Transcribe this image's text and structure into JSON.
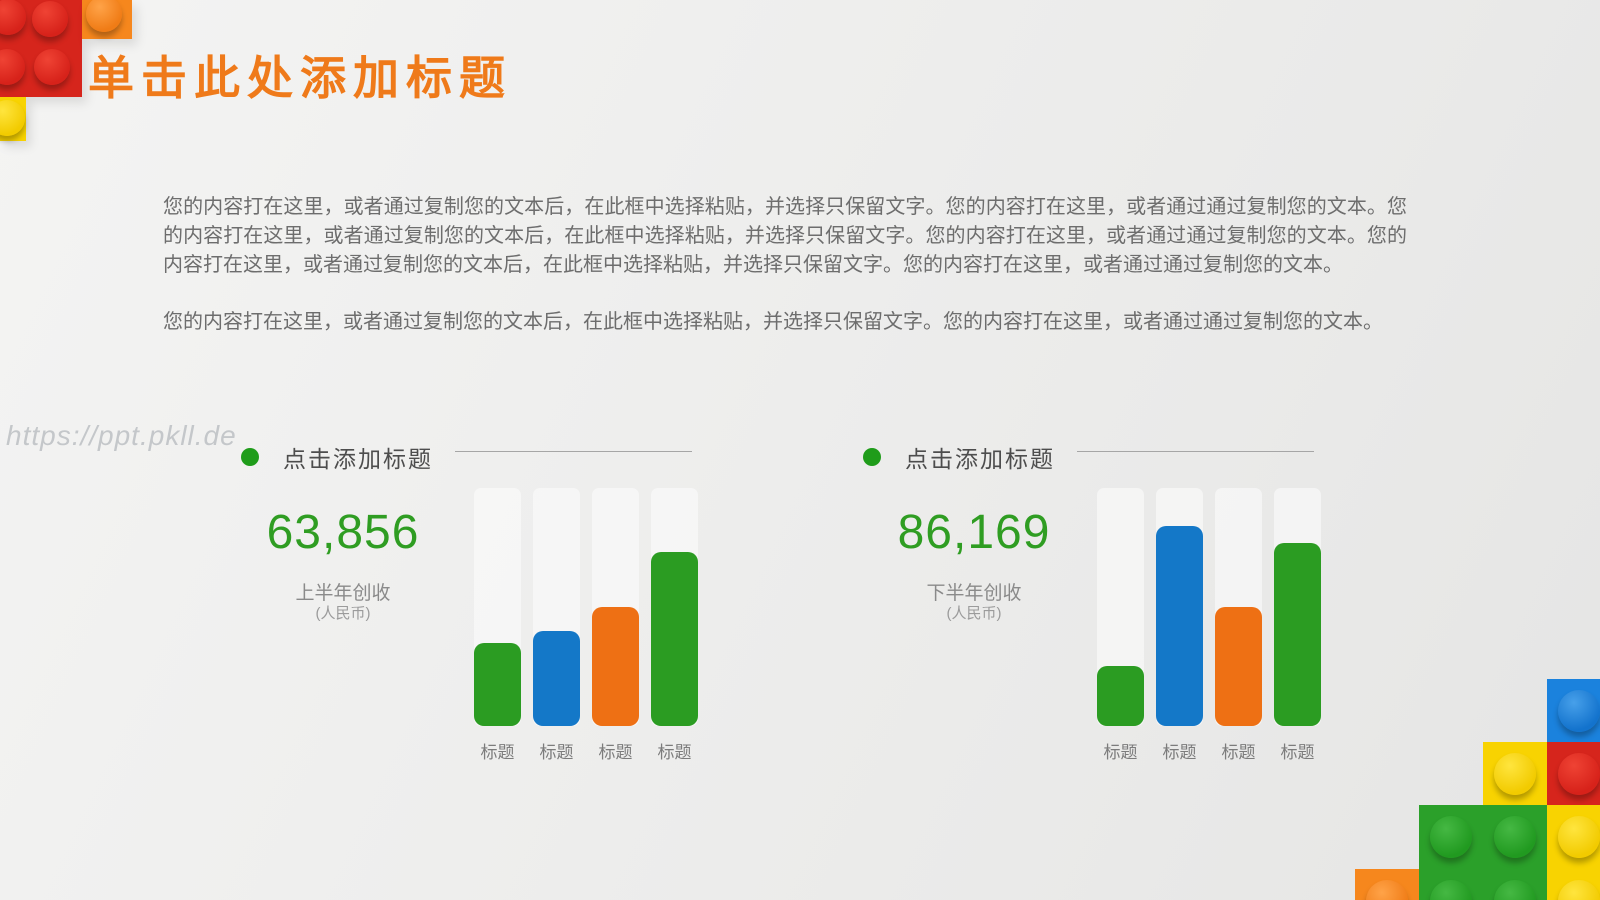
{
  "page": {
    "title": "单击此处添加标题",
    "watermark": "https://ppt.pkll.de"
  },
  "body_text": {
    "paragraph1": "您的内容打在这里，或者通过复制您的文本后，在此框中选择粘贴，并选择只保留文字。您的内容打在这里，或者通过通过复制您的文本。您的内容打在这里，或者通过复制您的文本后，在此框中选择粘贴，并选择只保留文字。您的内容打在这里，或者通过通过复制您的文本。您的内容打在这里，或者通过复制您的文本后，在此框中选择粘贴，并选择只保留文字。您的内容打在这里，或者通过通过复制您的文本。",
    "paragraph2": "您的内容打在这里，或者通过复制您的文本后，在此框中选择粘贴，并选择只保留文字。您的内容打在这里，或者通过通过复制您的文本。"
  },
  "colors": {
    "title_orange": "#ef7a1a",
    "stat_green": "#2f9d22",
    "bullet_green": "#1f9c1a",
    "bar_green": "#2b9c22",
    "bar_blue": "#1478c8",
    "bar_orange": "#ee7014",
    "lego_red": "#d6251c",
    "lego_orange": "#f6871d",
    "lego_yellow": "#f8d301",
    "lego_blue": "#1b82dd",
    "lego_green": "#2ba02a"
  },
  "sections": [
    {
      "bullet_icon": "green-dot",
      "header": "点击添加标题",
      "value": "63,856",
      "label": "上半年创收",
      "sublabel": "(人民币)"
    },
    {
      "bullet_icon": "green-dot",
      "header": "点击添加标题",
      "value": "86,169",
      "label": "下半年创收",
      "sublabel": "(人民币)"
    }
  ],
  "chart_data": [
    {
      "type": "bar",
      "title": "点击添加标题",
      "subtitle_value": "63,856",
      "categories": [
        "标题",
        "标题",
        "标题",
        "标题"
      ],
      "values": [
        35,
        40,
        50,
        73
      ],
      "unit": "percent of track height",
      "ylim": [
        0,
        100
      ],
      "grid": false,
      "legend": "none",
      "bar_colors": [
        "#2b9c22",
        "#1478c8",
        "#ee7014",
        "#2b9c22"
      ]
    },
    {
      "type": "bar",
      "title": "点击添加标题",
      "subtitle_value": "86,169",
      "categories": [
        "标题",
        "标题",
        "标题",
        "标题"
      ],
      "values": [
        25,
        84,
        50,
        77
      ],
      "unit": "percent of track height",
      "ylim": [
        0,
        100
      ],
      "grid": false,
      "legend": "none",
      "bar_colors": [
        "#2b9c22",
        "#1478c8",
        "#ee7014",
        "#2b9c22"
      ]
    }
  ]
}
